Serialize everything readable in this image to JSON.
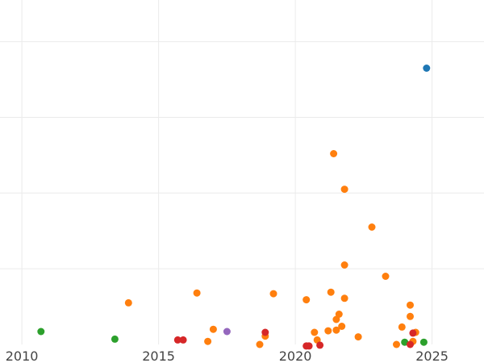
{
  "chart_data": {
    "type": "scatter",
    "title": "",
    "xlabel": "",
    "ylabel": "",
    "xlim": [
      2009.2,
      2026.9
    ],
    "ylim": [
      0,
      4.55
    ],
    "xticks": [
      2010,
      2015,
      2020,
      2025
    ],
    "xtick_labels": [
      "2010",
      "2015",
      "2020",
      "2025"
    ],
    "ytick_gridlines": [
      1,
      2,
      3,
      4
    ],
    "ytick_labels_visible": false,
    "grid": true,
    "legend": "none",
    "colors": {
      "blue": "#1f77b4",
      "orange": "#ff7f0e",
      "green": "#2ca02c",
      "red": "#d62728",
      "purple": "#9467bd"
    },
    "series": [
      {
        "color": "#1f77b4",
        "points": [
          [
            2024.8,
            3.65
          ]
        ]
      },
      {
        "color": "#ff7f0e",
        "points": [
          [
            2013.9,
            0.55
          ],
          [
            2016.4,
            0.68
          ],
          [
            2016.8,
            0.04
          ],
          [
            2017.0,
            0.2
          ],
          [
            2018.7,
            0.0
          ],
          [
            2018.9,
            0.11
          ],
          [
            2019.2,
            0.67
          ],
          [
            2020.4,
            0.59
          ],
          [
            2020.7,
            0.16
          ],
          [
            2020.8,
            0.06
          ],
          [
            2021.2,
            0.18
          ],
          [
            2021.3,
            0.69
          ],
          [
            2021.4,
            2.52
          ],
          [
            2021.5,
            0.33
          ],
          [
            2021.5,
            0.19
          ],
          [
            2021.6,
            0.4
          ],
          [
            2021.7,
            0.24
          ],
          [
            2021.8,
            2.05
          ],
          [
            2021.8,
            1.05
          ],
          [
            2021.8,
            0.61
          ],
          [
            2022.3,
            0.1
          ],
          [
            2022.8,
            1.55
          ],
          [
            2023.3,
            0.9
          ],
          [
            2023.7,
            0.0
          ],
          [
            2023.9,
            0.23
          ],
          [
            2024.2,
            0.52
          ],
          [
            2024.2,
            0.37
          ],
          [
            2024.3,
            0.04
          ],
          [
            2024.4,
            0.16
          ]
        ]
      },
      {
        "color": "#2ca02c",
        "points": [
          [
            2010.7,
            0.17
          ],
          [
            2013.4,
            0.07
          ],
          [
            2024.0,
            0.03
          ],
          [
            2024.7,
            0.03
          ]
        ]
      },
      {
        "color": "#d62728",
        "points": [
          [
            2015.7,
            0.06
          ],
          [
            2015.9,
            0.06
          ],
          [
            2018.9,
            0.16
          ],
          [
            2020.4,
            -0.02
          ],
          [
            2020.5,
            -0.02
          ],
          [
            2020.9,
            -0.01
          ],
          [
            2024.2,
            0.0
          ],
          [
            2024.3,
            0.15
          ]
        ]
      },
      {
        "color": "#9467bd",
        "points": [
          [
            2017.5,
            0.17
          ]
        ]
      }
    ]
  }
}
